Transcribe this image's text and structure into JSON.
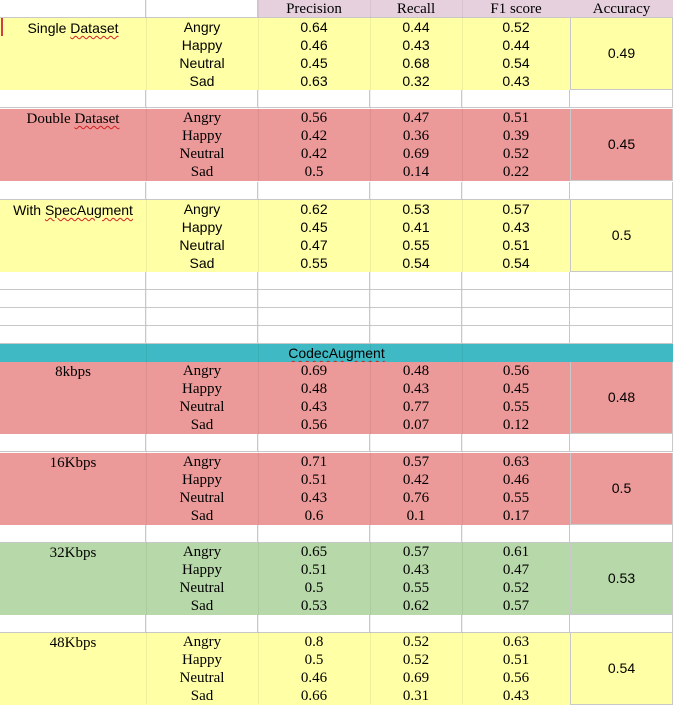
{
  "headers": [
    "Precision",
    "Recall",
    "F1 score",
    "Accuracy"
  ],
  "colors": {
    "header_bg": "#e6d0de",
    "yellow": "#ffffa6",
    "red": "#ec9999",
    "green": "#b7d8a8",
    "teal": "#3fb9c4",
    "grid": "#c8c8c8"
  },
  "codec_title": "CodecAugment",
  "blocks": [
    {
      "label": "Single Dataset",
      "color": "yellow",
      "font": "sans",
      "accuracy": "0.49",
      "rows": [
        {
          "emotion": "Angry",
          "precision": "0.64",
          "recall": "0.44",
          "f1": "0.52"
        },
        {
          "emotion": "Happy",
          "precision": "0.46",
          "recall": "0.43",
          "f1": "0.44"
        },
        {
          "emotion": "Neutral",
          "precision": "0.45",
          "recall": "0.68",
          "f1": "0.54"
        },
        {
          "emotion": "Sad",
          "precision": "0.63",
          "recall": "0.32",
          "f1": "0.43"
        }
      ]
    },
    {
      "label": "Double Dataset",
      "color": "red",
      "font": "serif",
      "accuracy": "0.45",
      "rows": [
        {
          "emotion": "Angry",
          "precision": "0.56",
          "recall": "0.47",
          "f1": "0.51"
        },
        {
          "emotion": "Happy",
          "precision": "0.42",
          "recall": "0.36",
          "f1": "0.39"
        },
        {
          "emotion": "Neutral",
          "precision": "0.42",
          "recall": "0.69",
          "f1": "0.52"
        },
        {
          "emotion": "Sad",
          "precision": "0.5",
          "recall": "0.14",
          "f1": "0.22"
        }
      ]
    },
    {
      "label": "With SpecAugment",
      "color": "yellow",
      "font": "sans",
      "accuracy": "0.5",
      "rows": [
        {
          "emotion": "Angry",
          "precision": "0.62",
          "recall": "0.53",
          "f1": "0.57"
        },
        {
          "emotion": "Happy",
          "precision": "0.45",
          "recall": "0.41",
          "f1": "0.43"
        },
        {
          "emotion": "Neutral",
          "precision": "0.47",
          "recall": "0.55",
          "f1": "0.51"
        },
        {
          "emotion": "Sad",
          "precision": "0.55",
          "recall": "0.54",
          "f1": "0.54"
        }
      ]
    },
    {
      "label": "8kbps",
      "color": "red",
      "font": "serif",
      "accuracy": "0.48",
      "rows": [
        {
          "emotion": "Angry",
          "precision": "0.69",
          "recall": "0.48",
          "f1": "0.56"
        },
        {
          "emotion": "Happy",
          "precision": "0.48",
          "recall": "0.43",
          "f1": "0.45"
        },
        {
          "emotion": "Neutral",
          "precision": "0.43",
          "recall": "0.77",
          "f1": "0.55"
        },
        {
          "emotion": "Sad",
          "precision": "0.56",
          "recall": "0.07",
          "f1": "0.12"
        }
      ]
    },
    {
      "label": "16Kbps",
      "color": "red",
      "font": "serif",
      "accuracy": "0.5",
      "rows": [
        {
          "emotion": "Angry",
          "precision": "0.71",
          "recall": "0.57",
          "f1": "0.63"
        },
        {
          "emotion": "Happy",
          "precision": "0.51",
          "recall": "0.42",
          "f1": "0.46"
        },
        {
          "emotion": "Neutral",
          "precision": "0.43",
          "recall": "0.76",
          "f1": "0.55"
        },
        {
          "emotion": "Sad",
          "precision": "0.6",
          "recall": "0.1",
          "f1": "0.17"
        }
      ]
    },
    {
      "label": "32Kbps",
      "color": "green",
      "font": "serif",
      "accuracy": "0.53",
      "rows": [
        {
          "emotion": "Angry",
          "precision": "0.65",
          "recall": "0.57",
          "f1": "0.61"
        },
        {
          "emotion": "Happy",
          "precision": "0.51",
          "recall": "0.43",
          "f1": "0.47"
        },
        {
          "emotion": "Neutral",
          "precision": "0.5",
          "recall": "0.55",
          "f1": "0.52"
        },
        {
          "emotion": "Sad",
          "precision": "0.53",
          "recall": "0.62",
          "f1": "0.57"
        }
      ]
    },
    {
      "label": "48Kbps",
      "color": "yellow",
      "font": "serif",
      "accuracy": "0.54",
      "rows": [
        {
          "emotion": "Angry",
          "precision": "0.8",
          "recall": "0.52",
          "f1": "0.63"
        },
        {
          "emotion": "Happy",
          "precision": "0.5",
          "recall": "0.52",
          "f1": "0.51"
        },
        {
          "emotion": "Neutral",
          "precision": "0.46",
          "recall": "0.69",
          "f1": "0.56"
        },
        {
          "emotion": "Sad",
          "precision": "0.66",
          "recall": "0.31",
          "f1": "0.43"
        }
      ]
    }
  ]
}
